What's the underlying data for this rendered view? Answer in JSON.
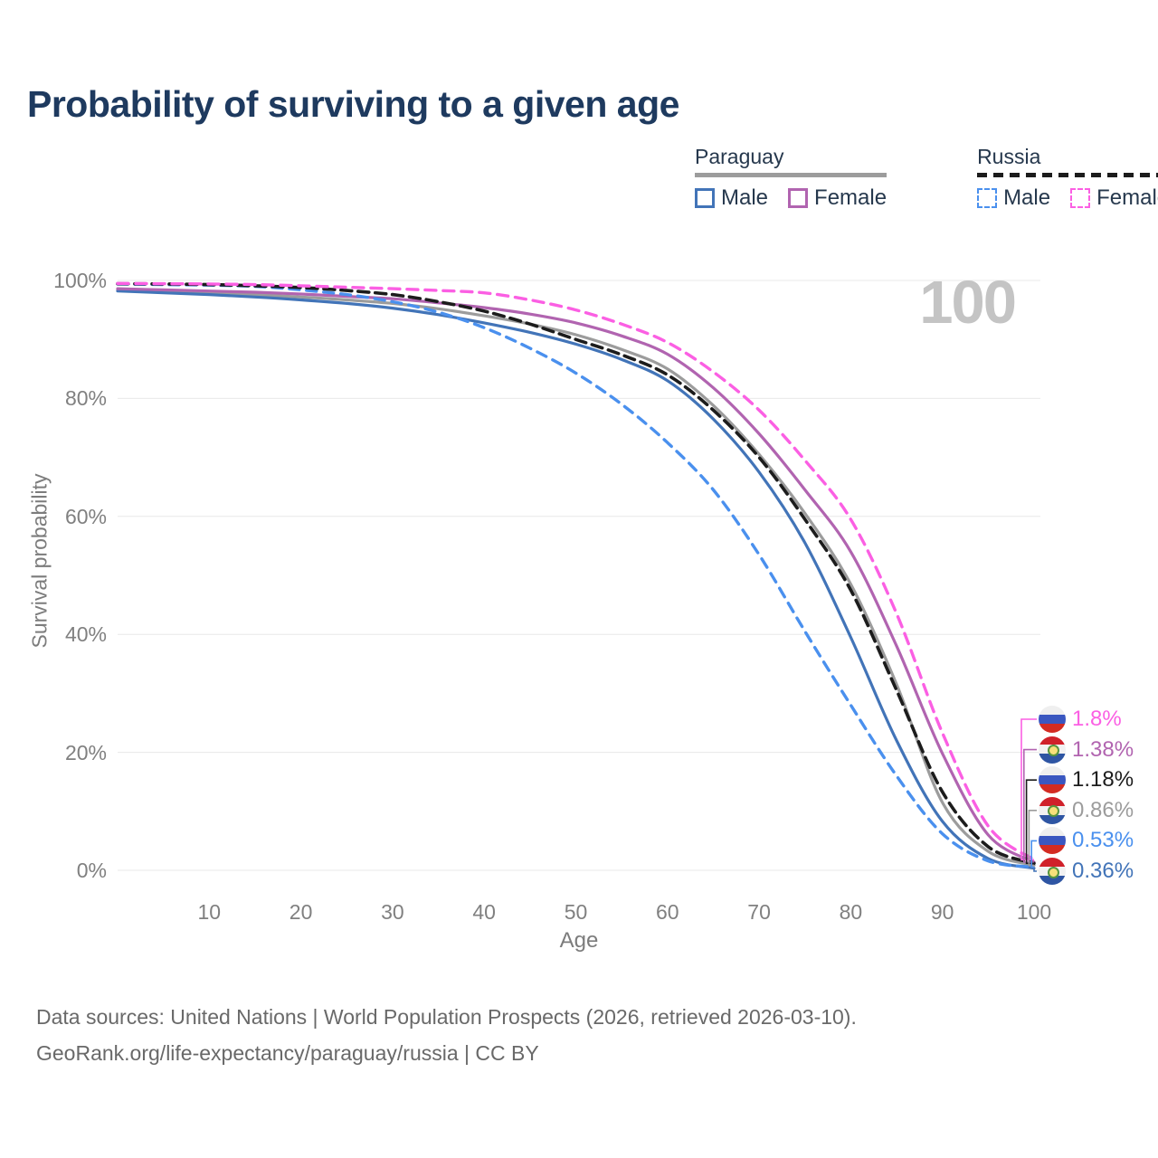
{
  "title": "Probability of surviving to a given age",
  "watermark": "100",
  "legend": {
    "groups": [
      {
        "country": "Paraguay",
        "line_style": "solid",
        "underline_color": "#9c9c9c",
        "items": [
          {
            "label": "Male",
            "color": "#4274b8"
          },
          {
            "label": "Female",
            "color": "#b164b0"
          }
        ]
      },
      {
        "country": "Russia",
        "line_style": "dashed",
        "underline_color": "#1c1c1c",
        "items": [
          {
            "label": "Male",
            "color": "#4a90ee"
          },
          {
            "label": "Female",
            "color": "#fb5fe3"
          }
        ]
      }
    ]
  },
  "axes": {
    "y_title": "Survival probability",
    "x_title": "Age",
    "y_ticks": [
      "100%",
      "80%",
      "60%",
      "40%",
      "20%",
      "0%"
    ],
    "x_ticks": [
      "10",
      "20",
      "30",
      "40",
      "50",
      "60",
      "70",
      "80",
      "90",
      "100"
    ]
  },
  "chart_data": {
    "type": "line",
    "title": "Probability of surviving to a given age",
    "xlabel": "Age",
    "ylabel": "Survival probability",
    "xlim": [
      0,
      100
    ],
    "ylim": [
      0,
      100
    ],
    "grid": "horizontal",
    "ages": [
      0,
      5,
      10,
      15,
      20,
      25,
      30,
      35,
      40,
      45,
      50,
      55,
      60,
      65,
      70,
      75,
      80,
      85,
      90,
      95,
      100
    ],
    "series": [
      {
        "name": "Paraguay Both sexes",
        "country": "Paraguay",
        "sex": "Both",
        "style": "solid",
        "color": "#9c9c9c",
        "width": 3.2,
        "values": [
          98.4,
          98.15,
          97.9,
          97.6,
          97.2,
          96.7,
          96.1,
          95.2,
          94.0,
          92.6,
          90.8,
          88.3,
          85.0,
          78.8,
          70.5,
          60.5,
          48.5,
          31.5,
          11.5,
          3.2,
          0.86
        ]
      },
      {
        "name": "Paraguay Male",
        "country": "Paraguay",
        "sex": "Male",
        "style": "solid",
        "color": "#4274b8",
        "width": 3.2,
        "values": [
          98.2,
          97.9,
          97.6,
          97.2,
          96.7,
          96.1,
          95.3,
          94.2,
          92.8,
          91.2,
          89.2,
          86.6,
          83.0,
          76.5,
          67.5,
          55.5,
          39.5,
          22.0,
          8.3,
          2.0,
          0.36
        ]
      },
      {
        "name": "Paraguay Female",
        "country": "Paraguay",
        "sex": "Female",
        "style": "solid",
        "color": "#b164b0",
        "width": 3.2,
        "values": [
          98.6,
          98.4,
          98.2,
          98.0,
          97.7,
          97.3,
          96.9,
          96.2,
          95.4,
          94.3,
          92.8,
          90.6,
          87.5,
          81.8,
          74.0,
          64.5,
          54.0,
          38.0,
          19.8,
          6.0,
          1.38
        ]
      },
      {
        "name": "Russia Male",
        "country": "Russia",
        "sex": "Male",
        "style": "dashed",
        "color": "#4a90ee",
        "width": 3.4,
        "dash": "11 8",
        "values": [
          99.4,
          99.3,
          99.2,
          99.0,
          98.4,
          97.6,
          96.4,
          94.6,
          92.0,
          88.5,
          84.3,
          79.0,
          72.5,
          64.5,
          53.5,
          40.5,
          28.0,
          16.0,
          6.2,
          1.6,
          0.53
        ]
      },
      {
        "name": "Russia Both sexes",
        "country": "Russia",
        "sex": "Both",
        "style": "dashed",
        "color": "#1c1c1c",
        "width": 3.6,
        "dash": "12 7",
        "values": [
          99.45,
          99.4,
          99.3,
          99.1,
          98.8,
          98.3,
          97.6,
          96.4,
          94.8,
          92.6,
          90.0,
          87.4,
          84.0,
          78.0,
          70.0,
          59.5,
          47.5,
          30.5,
          13.3,
          4.0,
          1.18
        ]
      },
      {
        "name": "Russia Female",
        "country": "Russia",
        "sex": "Female",
        "style": "dashed",
        "color": "#fb5fe3",
        "width": 3.4,
        "dash": "12 8",
        "values": [
          99.5,
          99.45,
          99.4,
          99.3,
          99.1,
          98.85,
          98.6,
          98.3,
          97.9,
          96.7,
          95.0,
          92.6,
          89.5,
          84.5,
          78.0,
          69.5,
          59.5,
          43.5,
          23.3,
          7.5,
          1.8
        ]
      }
    ]
  },
  "end_labels": [
    {
      "flag": "russia",
      "text": "1.8%",
      "color": "#fb5fe3",
      "value": 1.8
    },
    {
      "flag": "paraguay",
      "text": "1.38%",
      "color": "#b164b0",
      "value": 1.38
    },
    {
      "flag": "russia",
      "text": "1.18%",
      "color": "#1c1c1c",
      "value": 1.18
    },
    {
      "flag": "paraguay",
      "text": "0.86%",
      "color": "#9c9c9c",
      "value": 0.86
    },
    {
      "flag": "russia",
      "text": "0.53%",
      "color": "#4a90ee",
      "value": 0.53
    },
    {
      "flag": "paraguay",
      "text": "0.36%",
      "color": "#4274b8",
      "value": 0.36
    }
  ],
  "flag_colors": {
    "russia": [
      "#efefef",
      "#3a57c0",
      "#d32b22"
    ],
    "paraguay": [
      "#d0212a",
      "#f2f2f2",
      "#2e55a3"
    ]
  },
  "footer": {
    "line1": "Data sources: United Nations | World Population Prospects (2026, retrieved 2026-03-10).",
    "line2": "GeoRank.org/life-expectancy/paraguay/russia | CC BY"
  }
}
